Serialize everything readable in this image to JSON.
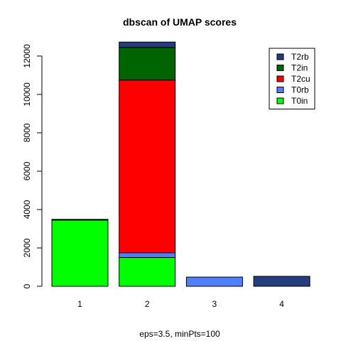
{
  "chart_data": {
    "type": "bar",
    "stacked": true,
    "title": "dbscan of UMAP scores",
    "xlabel": "eps=3.5, minPts=100",
    "ylabel": "",
    "ylim": [
      0,
      12700
    ],
    "yticks": [
      0,
      2000,
      4000,
      6000,
      8000,
      10000,
      12000
    ],
    "categories": [
      "1",
      "2",
      "3",
      "4"
    ],
    "series": [
      {
        "name": "T0in",
        "color": "#00FF00",
        "values": [
          3450,
          1500,
          0,
          0
        ]
      },
      {
        "name": "T0rb",
        "color": "#4F7FFF",
        "values": [
          0,
          250,
          480,
          0
        ]
      },
      {
        "name": "T2cu",
        "color": "#FF0000",
        "values": [
          40,
          9000,
          0,
          0
        ]
      },
      {
        "name": "T2in",
        "color": "#006400",
        "values": [
          0,
          1700,
          0,
          0
        ]
      },
      {
        "name": "T2rb",
        "color": "#253C7E",
        "values": [
          0,
          280,
          0,
          520
        ]
      }
    ],
    "legend_position": "top-right",
    "legend_order": [
      "T2rb",
      "T2in",
      "T2cu",
      "T0rb",
      "T0in"
    ],
    "grid": false
  }
}
